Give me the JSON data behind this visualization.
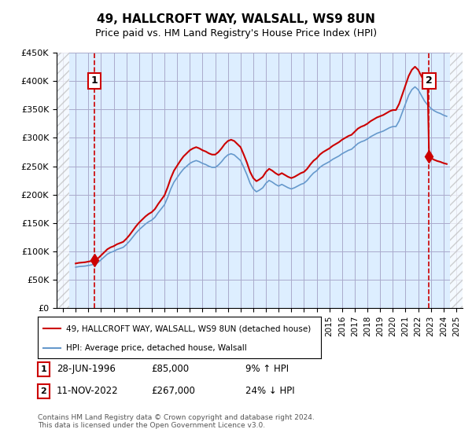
{
  "title": "49, HALLCROFT WAY, WALSALL, WS9 8UN",
  "subtitle": "Price paid vs. HM Land Registry's House Price Index (HPI)",
  "ylabel": "",
  "ylim": [
    0,
    450000
  ],
  "yticks": [
    0,
    50000,
    100000,
    150000,
    200000,
    250000,
    300000,
    350000,
    400000,
    450000
  ],
  "ytick_labels": [
    "£0",
    "£50K",
    "£100K",
    "£150K",
    "£200K",
    "£250K",
    "£300K",
    "£350K",
    "£400K",
    "£450K"
  ],
  "xlim_min": 1993.5,
  "xlim_max": 2025.5,
  "transaction1": {
    "date": 1996.49,
    "price": 85000,
    "label": "1",
    "pct": "9% ↑ HPI",
    "date_str": "28-JUN-1996",
    "price_str": "£85,000"
  },
  "transaction2": {
    "date": 2022.86,
    "price": 267000,
    "label": "2",
    "pct": "24% ↓ HPI",
    "date_str": "11-NOV-2022",
    "price_str": "£267,000"
  },
  "legend_line1": "49, HALLCROFT WAY, WALSALL, WS9 8UN (detached house)",
  "legend_line2": "HPI: Average price, detached house, Walsall",
  "footer": "Contains HM Land Registry data © Crown copyright and database right 2024.\nThis data is licensed under the Open Government Licence v3.0.",
  "line_color_red": "#cc0000",
  "line_color_blue": "#6699cc",
  "bg_color": "#ddeeff",
  "hatch_color": "#bbbbbb",
  "grid_color": "#aaaacc",
  "hpi_data_x": [
    1995.0,
    1995.25,
    1995.5,
    1995.75,
    1996.0,
    1996.25,
    1996.5,
    1996.75,
    1997.0,
    1997.25,
    1997.5,
    1997.75,
    1998.0,
    1998.25,
    1998.5,
    1998.75,
    1999.0,
    1999.25,
    1999.5,
    1999.75,
    2000.0,
    2000.25,
    2000.5,
    2000.75,
    2001.0,
    2001.25,
    2001.5,
    2001.75,
    2002.0,
    2002.25,
    2002.5,
    2002.75,
    2003.0,
    2003.25,
    2003.5,
    2003.75,
    2004.0,
    2004.25,
    2004.5,
    2004.75,
    2005.0,
    2005.25,
    2005.5,
    2005.75,
    2006.0,
    2006.25,
    2006.5,
    2006.75,
    2007.0,
    2007.25,
    2007.5,
    2007.75,
    2008.0,
    2008.25,
    2008.5,
    2008.75,
    2009.0,
    2009.25,
    2009.5,
    2009.75,
    2010.0,
    2010.25,
    2010.5,
    2010.75,
    2011.0,
    2011.25,
    2011.5,
    2011.75,
    2012.0,
    2012.25,
    2012.5,
    2012.75,
    2013.0,
    2013.25,
    2013.5,
    2013.75,
    2014.0,
    2014.25,
    2014.5,
    2014.75,
    2015.0,
    2015.25,
    2015.5,
    2015.75,
    2016.0,
    2016.25,
    2016.5,
    2016.75,
    2017.0,
    2017.25,
    2017.5,
    2017.75,
    2018.0,
    2018.25,
    2018.5,
    2018.75,
    2019.0,
    2019.25,
    2019.5,
    2019.75,
    2020.0,
    2020.25,
    2020.5,
    2020.75,
    2021.0,
    2021.25,
    2021.5,
    2021.75,
    2022.0,
    2022.25,
    2022.5,
    2022.75,
    2023.0,
    2023.25,
    2023.5,
    2023.75,
    2024.0,
    2024.25
  ],
  "hpi_data_y": [
    72000,
    73000,
    73500,
    74000,
    75000,
    76000,
    78000,
    80000,
    85000,
    90000,
    95000,
    98000,
    100000,
    103000,
    105000,
    107000,
    112000,
    118000,
    125000,
    132000,
    138000,
    143000,
    148000,
    152000,
    155000,
    160000,
    168000,
    175000,
    182000,
    195000,
    210000,
    222000,
    230000,
    238000,
    245000,
    250000,
    255000,
    258000,
    260000,
    258000,
    255000,
    253000,
    250000,
    248000,
    248000,
    252000,
    258000,
    265000,
    270000,
    272000,
    270000,
    265000,
    260000,
    248000,
    235000,
    220000,
    210000,
    205000,
    208000,
    212000,
    220000,
    225000,
    222000,
    218000,
    215000,
    218000,
    215000,
    212000,
    210000,
    212000,
    215000,
    218000,
    220000,
    225000,
    232000,
    238000,
    242000,
    248000,
    252000,
    255000,
    258000,
    262000,
    265000,
    268000,
    272000,
    275000,
    278000,
    280000,
    285000,
    290000,
    293000,
    295000,
    298000,
    302000,
    305000,
    308000,
    310000,
    312000,
    315000,
    318000,
    320000,
    320000,
    330000,
    345000,
    360000,
    375000,
    385000,
    390000,
    385000,
    375000,
    365000,
    358000,
    352000,
    348000,
    345000,
    343000,
    340000,
    338000
  ],
  "price_data_x": [
    1996.49,
    2022.86
  ],
  "price_data_y": [
    85000,
    267000
  ]
}
